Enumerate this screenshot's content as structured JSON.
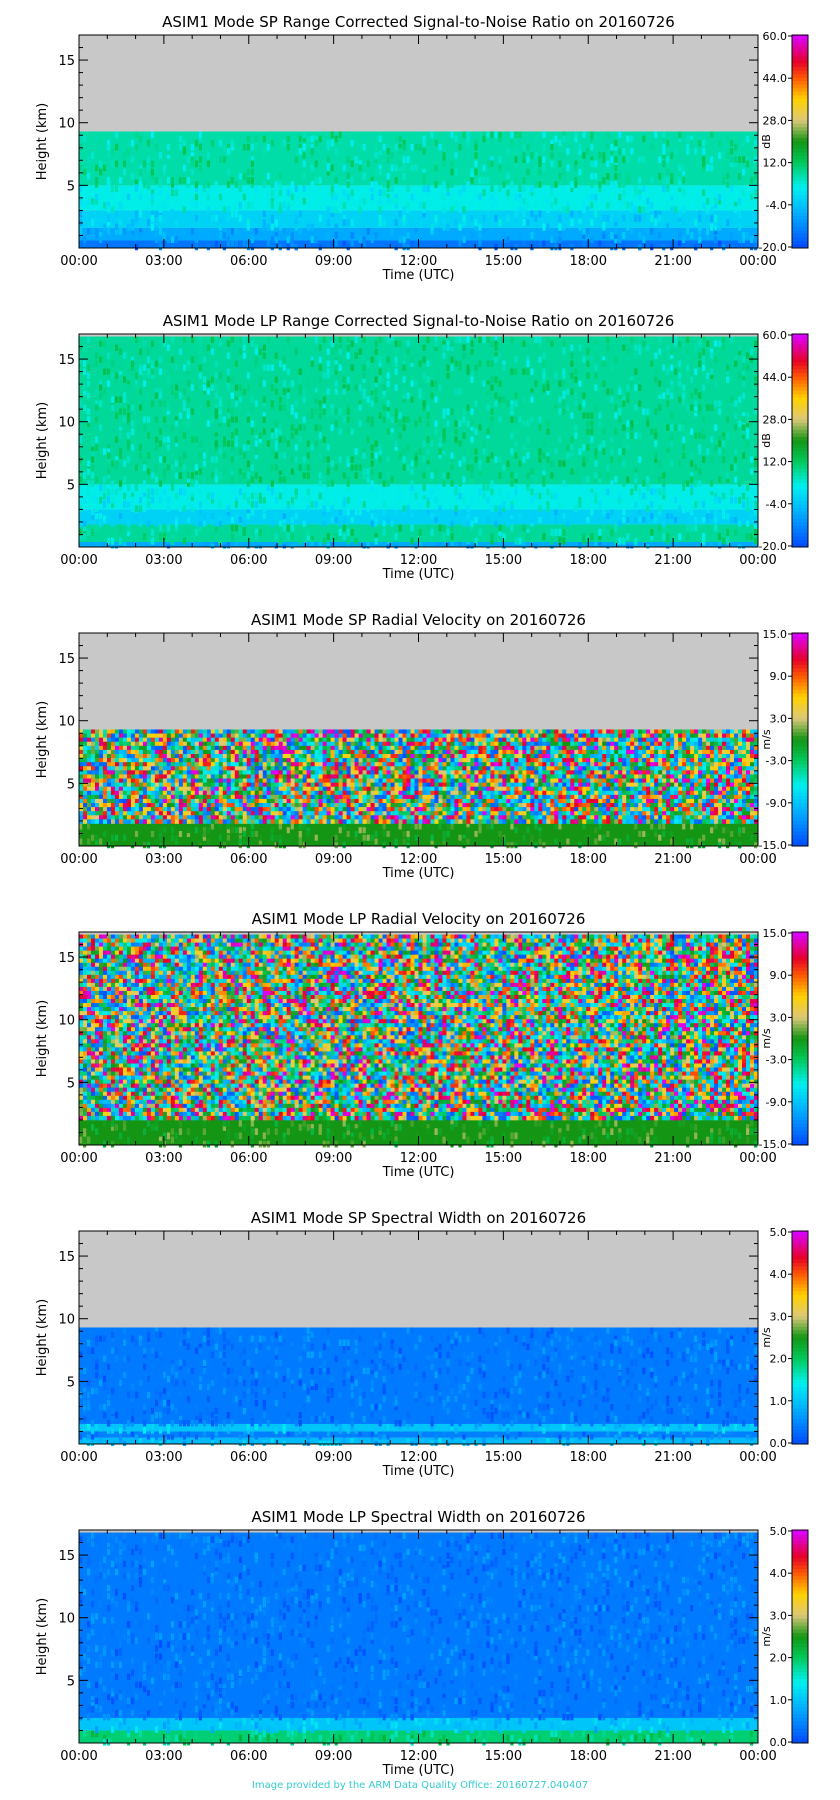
{
  "footer": "Image provided by the ARM Data Quality Office: 20160727.040407",
  "chart_data": [
    {
      "type": "heatmap",
      "title": "ASIM1 Mode SP Range Corrected Signal-to-Noise Ratio on 20160726",
      "xlabel": "Time (UTC)",
      "ylabel": "Height (km)",
      "xticks": [
        "00:00",
        "03:00",
        "06:00",
        "09:00",
        "12:00",
        "15:00",
        "18:00",
        "21:00",
        "00:00"
      ],
      "yticks": [
        5,
        10,
        15
      ],
      "ylim": [
        0,
        17
      ],
      "data_top_km": 9.3,
      "colorbar": {
        "label": "dB",
        "ticks": [
          "60.0",
          "44.0",
          "28.0",
          "12.0",
          "-4.0",
          "-20.0"
        ],
        "range": [
          -20,
          60
        ]
      },
      "layers": [
        {
          "from_km": 0,
          "to_km": 0.6,
          "value": -15
        },
        {
          "from_km": 0.6,
          "to_km": 1.6,
          "value": -8
        },
        {
          "from_km": 1.6,
          "to_km": 3.0,
          "value": -2
        },
        {
          "from_km": 3.0,
          "to_km": 5.0,
          "value": 3
        },
        {
          "from_km": 5.0,
          "to_km": 9.3,
          "value": 7
        }
      ]
    },
    {
      "type": "heatmap",
      "title": "ASIM1 Mode LP Range Corrected Signal-to-Noise Ratio on 20160726",
      "xlabel": "Time (UTC)",
      "ylabel": "Height (km)",
      "xticks": [
        "00:00",
        "03:00",
        "06:00",
        "09:00",
        "12:00",
        "15:00",
        "18:00",
        "21:00",
        "00:00"
      ],
      "yticks": [
        5,
        10,
        15
      ],
      "ylim": [
        0,
        17
      ],
      "data_top_km": 16.8,
      "colorbar": {
        "label": "dB",
        "ticks": [
          "60.0",
          "44.0",
          "28.0",
          "12.0",
          "-4.0",
          "-20.0"
        ],
        "range": [
          -20,
          60
        ]
      },
      "layers": [
        {
          "from_km": 0,
          "to_km": 0.4,
          "value": -8
        },
        {
          "from_km": 0.4,
          "to_km": 1.8,
          "value": 8
        },
        {
          "from_km": 1.8,
          "to_km": 3.0,
          "value": -2
        },
        {
          "from_km": 3.0,
          "to_km": 5.0,
          "value": 3
        },
        {
          "from_km": 5.0,
          "to_km": 16.8,
          "value": 8
        }
      ]
    },
    {
      "type": "heatmap",
      "title": "ASIM1 Mode SP Radial Velocity  on 20160726",
      "xlabel": "Time (UTC)",
      "ylabel": "Height (km)",
      "xticks": [
        "00:00",
        "03:00",
        "06:00",
        "09:00",
        "12:00",
        "15:00",
        "18:00",
        "21:00",
        "00:00"
      ],
      "yticks": [
        5,
        10,
        15
      ],
      "ylim": [
        0,
        17
      ],
      "data_top_km": 9.3,
      "colorbar": {
        "label": "m/s",
        "ticks": [
          "15.0",
          "9.0",
          "3.0",
          "-3.0",
          "-9.0",
          "-15.0"
        ],
        "range": [
          -15,
          15
        ]
      },
      "layers": [
        {
          "from_km": 0,
          "to_km": 1.8,
          "value": 0
        },
        {
          "from_km": 1.8,
          "to_km": 9.3,
          "value": "noise"
        }
      ]
    },
    {
      "type": "heatmap",
      "title": "ASIM1 Mode LP Radial Velocity  on 20160726",
      "xlabel": "Time (UTC)",
      "ylabel": "Height (km)",
      "xticks": [
        "00:00",
        "03:00",
        "06:00",
        "09:00",
        "12:00",
        "15:00",
        "18:00",
        "21:00",
        "00:00"
      ],
      "yticks": [
        5,
        10,
        15
      ],
      "ylim": [
        0,
        17
      ],
      "data_top_km": 16.8,
      "colorbar": {
        "label": "m/s",
        "ticks": [
          "15.0",
          "9.0",
          "3.0",
          "-3.0",
          "-9.0",
          "-15.0"
        ],
        "range": [
          -15,
          15
        ]
      },
      "layers": [
        {
          "from_km": 0,
          "to_km": 2.0,
          "value": 0
        },
        {
          "from_km": 2.0,
          "to_km": 16.8,
          "value": "noise"
        }
      ]
    },
    {
      "type": "heatmap",
      "title": "ASIM1 Mode SP Spectral Width  on 20160726",
      "xlabel": "Time (UTC)",
      "ylabel": "Height (km)",
      "xticks": [
        "00:00",
        "03:00",
        "06:00",
        "09:00",
        "12:00",
        "15:00",
        "18:00",
        "21:00",
        "00:00"
      ],
      "yticks": [
        5,
        10,
        15
      ],
      "ylim": [
        0,
        17
      ],
      "data_top_km": 9.3,
      "colorbar": {
        "label": "m/s",
        "ticks": [
          "5.0",
          "4.0",
          "3.0",
          "2.0",
          "1.0",
          "0.0"
        ],
        "range": [
          0,
          5
        ]
      },
      "layers": [
        {
          "from_km": 0,
          "to_km": 0.5,
          "value": 0.9
        },
        {
          "from_km": 0.5,
          "to_km": 1.0,
          "value": 0.4
        },
        {
          "from_km": 1.0,
          "to_km": 1.6,
          "value": 1.0
        },
        {
          "from_km": 1.6,
          "to_km": 9.3,
          "value": 0.35
        }
      ]
    },
    {
      "type": "heatmap",
      "title": "ASIM1 Mode LP Spectral Width  on 20160726",
      "xlabel": "Time (UTC)",
      "ylabel": "Height (km)",
      "xticks": [
        "00:00",
        "03:00",
        "06:00",
        "09:00",
        "12:00",
        "15:00",
        "18:00",
        "21:00",
        "00:00"
      ],
      "yticks": [
        5,
        10,
        15
      ],
      "ylim": [
        0,
        17
      ],
      "data_top_km": 16.8,
      "colorbar": {
        "label": "m/s",
        "ticks": [
          "5.0",
          "4.0",
          "3.0",
          "2.0",
          "1.0",
          "0.0"
        ],
        "range": [
          0,
          5
        ]
      },
      "layers": [
        {
          "from_km": 0,
          "to_km": 1.0,
          "value": 1.9
        },
        {
          "from_km": 1.0,
          "to_km": 2.0,
          "value": 1.0
        },
        {
          "from_km": 2.0,
          "to_km": 16.8,
          "value": 0.35
        }
      ]
    }
  ]
}
